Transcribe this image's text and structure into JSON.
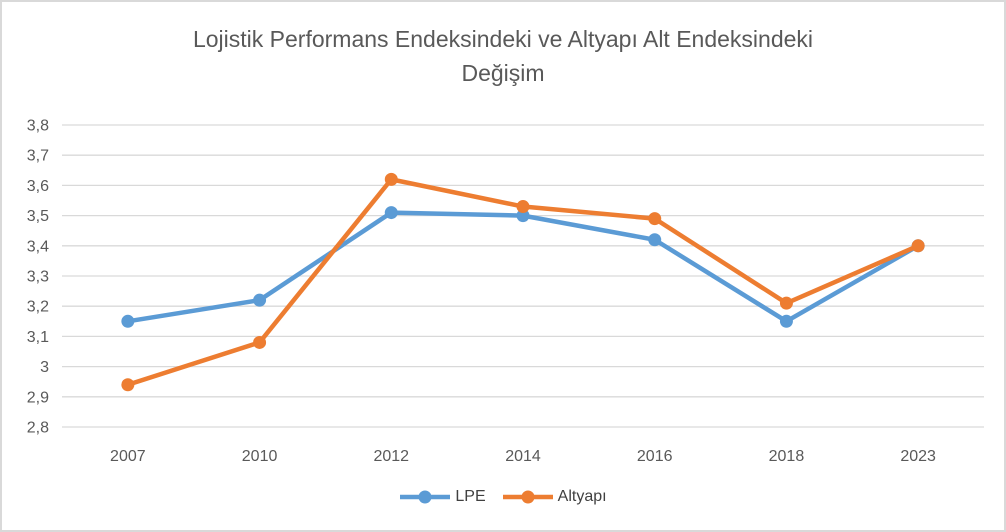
{
  "title": "Lojistik Performans Endeksindeki ve Altyapı Alt Endeksindeki Değişim",
  "title_lines": [
    "Lojistik Performans Endeksindeki ve Altyapı Alt Endeksindeki",
    "Değişim"
  ],
  "chart_data": {
    "type": "line",
    "categories": [
      "2007",
      "2010",
      "2012",
      "2014",
      "2016",
      "2018",
      "2023"
    ],
    "series": [
      {
        "name": "LPE",
        "color": "#5B9BD5",
        "values": [
          3.15,
          3.22,
          3.51,
          3.5,
          3.42,
          3.15,
          3.4
        ]
      },
      {
        "name": "Altyapı",
        "color": "#ED7D31",
        "values": [
          2.94,
          3.08,
          3.62,
          3.53,
          3.49,
          3.21,
          3.4
        ]
      }
    ],
    "xlabel": "",
    "ylabel": "",
    "ylim": [
      2.8,
      3.8
    ],
    "ytick_step": 0.1,
    "ytick_labels": [
      "2,8",
      "2,9",
      "3",
      "3,1",
      "3,2",
      "3,3",
      "3,4",
      "3,5",
      "3,6",
      "3,7",
      "3,8"
    ],
    "decimal_separator": ",",
    "grid": true,
    "gridline_color": "#D9D9D9",
    "marker": "circle",
    "legend_position": "bottom"
  },
  "colors": {
    "background": "#FFFFFF",
    "border": "#D9D9D9",
    "title_text": "#595959",
    "axis_text": "#595959",
    "legend_text": "#404040"
  }
}
